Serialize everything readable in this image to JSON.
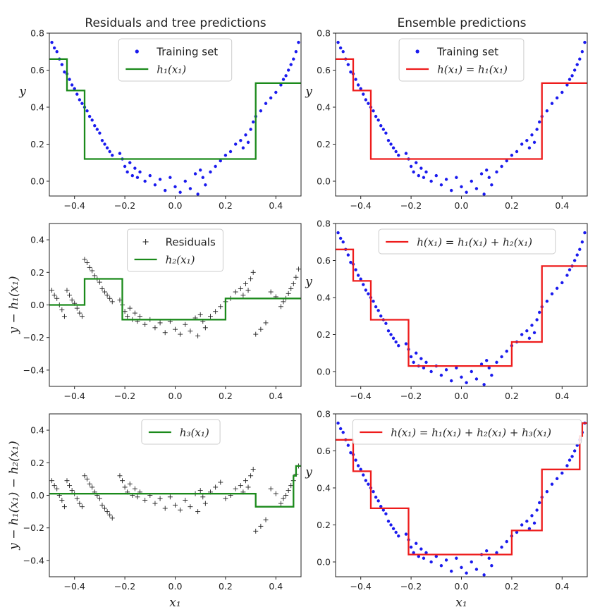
{
  "column_titles": [
    "Residuals and tree predictions",
    "Ensemble predictions"
  ],
  "chart_data": [
    {
      "type": "scatter",
      "panel": "top-left",
      "xlim": [
        -0.5,
        0.5
      ],
      "ylim": [
        -0.08,
        0.8
      ],
      "xticks": [
        -0.4,
        -0.2,
        0.0,
        0.2,
        0.4
      ],
      "xtick_labels": [
        "−0.4",
        "−0.2",
        "0.0",
        "0.2",
        "0.4"
      ],
      "yticks": [
        0.0,
        0.2,
        0.4,
        0.6,
        0.8
      ],
      "ytick_labels": [
        "0.0",
        "0.2",
        "0.4",
        "0.6",
        "0.8"
      ],
      "ylabel": "y",
      "xlabel": "",
      "points_series": "training",
      "step": {
        "name": "h₁(x₁)",
        "color": "#1b8a1b",
        "breaks": [
          -0.43,
          -0.36,
          0.32
        ],
        "levels": [
          0.66,
          0.49,
          0.12,
          0.53
        ]
      },
      "legend": {
        "position": "top-center",
        "entries": [
          {
            "kind": "dot",
            "label": "Training set"
          },
          {
            "kind": "line",
            "label": "h₁(x₁)"
          }
        ]
      }
    },
    {
      "type": "scatter",
      "panel": "top-right",
      "xlim": [
        -0.5,
        0.5
      ],
      "ylim": [
        -0.08,
        0.8
      ],
      "xticks": [
        -0.4,
        -0.2,
        0.0,
        0.2,
        0.4
      ],
      "xtick_labels": [
        "−0.4",
        "−0.2",
        "0.0",
        "0.2",
        "0.4"
      ],
      "yticks": [
        0.0,
        0.2,
        0.4,
        0.6,
        0.8
      ],
      "ytick_labels": [
        "0.0",
        "0.2",
        "0.4",
        "0.6",
        "0.8"
      ],
      "ylabel": "y",
      "xlabel": "",
      "points_series": "training",
      "step": {
        "name": "h(x₁) = h₁(x₁)",
        "color": "#ee1c1c",
        "breaks": [
          -0.43,
          -0.36,
          0.32
        ],
        "levels": [
          0.66,
          0.49,
          0.12,
          0.53
        ]
      },
      "legend": {
        "position": "top-center",
        "entries": [
          {
            "kind": "dot",
            "label": "Training set"
          },
          {
            "kind": "line",
            "label": "h(x₁) = h₁(x₁)"
          }
        ]
      }
    },
    {
      "type": "scatter",
      "panel": "middle-left",
      "xlim": [
        -0.5,
        0.5
      ],
      "ylim": [
        -0.5,
        0.5
      ],
      "xticks": [
        -0.4,
        -0.2,
        0.0,
        0.2,
        0.4
      ],
      "xtick_labels": [
        "−0.4",
        "−0.2",
        "0.0",
        "0.2",
        "0.4"
      ],
      "yticks": [
        -0.4,
        -0.2,
        0.0,
        0.2,
        0.4
      ],
      "ytick_labels": [
        "−0.4",
        "−0.2",
        "0.0",
        "0.2",
        "0.4"
      ],
      "ylabel": "y − h₁(x₁)",
      "xlabel": "",
      "points_series": "residuals1",
      "step": {
        "name": "h₂(x₁)",
        "color": "#1b8a1b",
        "breaks": [
          -0.36,
          -0.21,
          0.2
        ],
        "levels": [
          0.0,
          0.16,
          -0.09,
          0.04
        ]
      },
      "legend": {
        "position": "top-center",
        "entries": [
          {
            "kind": "plus",
            "label": "Residuals"
          },
          {
            "kind": "line",
            "label": "h₂(x₁)"
          }
        ]
      }
    },
    {
      "type": "scatter",
      "panel": "middle-right",
      "xlim": [
        -0.5,
        0.5
      ],
      "ylim": [
        -0.08,
        0.8
      ],
      "xticks": [
        -0.4,
        -0.2,
        0.0,
        0.2,
        0.4
      ],
      "xtick_labels": [
        "−0.4",
        "−0.2",
        "0.0",
        "0.2",
        "0.4"
      ],
      "yticks": [
        0.0,
        0.2,
        0.4,
        0.6,
        0.8
      ],
      "ytick_labels": [
        "0.0",
        "0.2",
        "0.4",
        "0.6",
        "0.8"
      ],
      "ylabel": "y",
      "xlabel": "",
      "points_series": "training",
      "step": {
        "name": "h(x₁) = h₁(x₁) + h₂(x₁)",
        "color": "#ee1c1c",
        "breaks": [
          -0.43,
          -0.36,
          -0.21,
          0.2,
          0.32
        ],
        "levels": [
          0.66,
          0.49,
          0.28,
          0.03,
          0.16,
          0.57
        ]
      },
      "legend": {
        "position": "top-center",
        "entries": [
          {
            "kind": "line",
            "label": "h(x₁) = h₁(x₁) + h₂(x₁)"
          }
        ]
      }
    },
    {
      "type": "scatter",
      "panel": "bottom-left",
      "xlim": [
        -0.5,
        0.5
      ],
      "ylim": [
        -0.5,
        0.5
      ],
      "xticks": [
        -0.4,
        -0.2,
        0.0,
        0.2,
        0.4
      ],
      "xtick_labels": [
        "−0.4",
        "−0.2",
        "0.0",
        "0.2",
        "0.4"
      ],
      "yticks": [
        -0.4,
        -0.2,
        0.0,
        0.2,
        0.4
      ],
      "ytick_labels": [
        "−0.4",
        "−0.2",
        "0.0",
        "0.2",
        "0.4"
      ],
      "ylabel": "y − h₁(x₁) − h₂(x₁)",
      "xlabel": "x₁",
      "points_series": "residuals2",
      "step": {
        "name": "h₃(x₁)",
        "color": "#1b8a1b",
        "breaks": [
          0.32,
          0.47,
          0.48
        ],
        "levels": [
          0.01,
          -0.07,
          0.12,
          0.18
        ]
      },
      "legend": {
        "position": "top-center",
        "entries": [
          {
            "kind": "line",
            "label": "h₃(x₁)"
          }
        ]
      }
    },
    {
      "type": "scatter",
      "panel": "bottom-right",
      "xlim": [
        -0.5,
        0.5
      ],
      "ylim": [
        -0.08,
        0.8
      ],
      "xticks": [
        -0.4,
        -0.2,
        0.0,
        0.2,
        0.4
      ],
      "xtick_labels": [
        "−0.4",
        "−0.2",
        "0.0",
        "0.2",
        "0.4"
      ],
      "yticks": [
        0.0,
        0.2,
        0.4,
        0.6,
        0.8
      ],
      "ytick_labels": [
        "0.0",
        "0.2",
        "0.4",
        "0.6",
        "0.8"
      ],
      "ylabel": "y",
      "xlabel": "x₁",
      "points_series": "training",
      "step": {
        "name": "h(x₁) = h₁(x₁) + h₂(x₁) + h₃(x₁)",
        "color": "#ee1c1c",
        "breaks": [
          -0.43,
          -0.36,
          -0.21,
          0.2,
          0.32,
          0.47,
          0.48
        ],
        "levels": [
          0.66,
          0.49,
          0.29,
          0.04,
          0.17,
          0.5,
          0.68,
          0.75
        ]
      },
      "legend": {
        "position": "top-center",
        "entries": [
          {
            "kind": "line",
            "label": "h(x₁) = h₁(x₁) + h₂(x₁) + h₃(x₁)"
          }
        ]
      }
    }
  ],
  "series": {
    "training": {
      "name": "Training set",
      "color": "#1a1aee",
      "x": [
        -0.49,
        -0.48,
        -0.47,
        -0.46,
        -0.45,
        -0.44,
        -0.43,
        -0.42,
        -0.41,
        -0.4,
        -0.39,
        -0.38,
        -0.37,
        -0.36,
        -0.35,
        -0.34,
        -0.33,
        -0.32,
        -0.31,
        -0.3,
        -0.29,
        -0.28,
        -0.27,
        -0.26,
        -0.25,
        -0.22,
        -0.21,
        -0.2,
        -0.19,
        -0.18,
        -0.17,
        -0.16,
        -0.15,
        -0.14,
        -0.12,
        -0.1,
        -0.08,
        -0.06,
        -0.04,
        -0.02,
        0.0,
        0.02,
        0.04,
        0.06,
        0.08,
        0.09,
        0.1,
        0.11,
        0.12,
        0.14,
        0.16,
        0.18,
        0.2,
        0.22,
        0.24,
        0.26,
        0.27,
        0.28,
        0.29,
        0.3,
        0.31,
        0.32,
        0.34,
        0.36,
        0.38,
        0.4,
        0.42,
        0.43,
        0.44,
        0.45,
        0.46,
        0.47,
        0.48,
        0.49
      ],
      "y": [
        0.75,
        0.72,
        0.7,
        0.66,
        0.63,
        0.59,
        0.58,
        0.55,
        0.52,
        0.5,
        0.47,
        0.44,
        0.42,
        0.4,
        0.38,
        0.35,
        0.33,
        0.3,
        0.28,
        0.26,
        0.22,
        0.2,
        0.18,
        0.16,
        0.14,
        0.15,
        0.12,
        0.08,
        0.05,
        0.1,
        0.03,
        0.07,
        0.02,
        0.05,
        0.0,
        0.03,
        -0.02,
        0.01,
        -0.05,
        0.02,
        -0.03,
        -0.06,
        0.0,
        -0.04,
        0.04,
        -0.07,
        0.06,
        0.02,
        -0.02,
        0.05,
        0.08,
        0.11,
        0.14,
        0.16,
        0.2,
        0.22,
        0.18,
        0.25,
        0.21,
        0.28,
        0.32,
        0.35,
        0.38,
        0.42,
        0.45,
        0.48,
        0.52,
        0.55,
        0.57,
        0.6,
        0.63,
        0.66,
        0.7,
        0.75
      ]
    },
    "residuals1": {
      "name": "Residuals",
      "color": "#222222",
      "x": [
        -0.49,
        -0.48,
        -0.47,
        -0.46,
        -0.45,
        -0.44,
        -0.43,
        -0.42,
        -0.41,
        -0.4,
        -0.39,
        -0.38,
        -0.37,
        -0.36,
        -0.35,
        -0.34,
        -0.33,
        -0.32,
        -0.31,
        -0.3,
        -0.29,
        -0.28,
        -0.27,
        -0.26,
        -0.25,
        -0.22,
        -0.21,
        -0.2,
        -0.19,
        -0.18,
        -0.17,
        -0.16,
        -0.15,
        -0.14,
        -0.12,
        -0.1,
        -0.08,
        -0.06,
        -0.04,
        -0.02,
        0.0,
        0.02,
        0.04,
        0.06,
        0.08,
        0.09,
        0.1,
        0.11,
        0.12,
        0.14,
        0.16,
        0.18,
        0.2,
        0.22,
        0.24,
        0.26,
        0.27,
        0.28,
        0.29,
        0.3,
        0.31,
        0.32,
        0.34,
        0.36,
        0.38,
        0.4,
        0.42,
        0.43,
        0.44,
        0.45,
        0.46,
        0.47,
        0.48,
        0.49
      ],
      "y": [
        0.09,
        0.06,
        0.04,
        0.0,
        -0.03,
        -0.07,
        0.09,
        0.06,
        0.03,
        0.01,
        -0.02,
        -0.05,
        -0.07,
        0.28,
        0.26,
        0.23,
        0.21,
        0.18,
        0.16,
        0.14,
        0.1,
        0.08,
        0.06,
        0.04,
        0.02,
        0.03,
        0.0,
        -0.04,
        -0.07,
        -0.02,
        -0.09,
        -0.05,
        -0.1,
        -0.07,
        -0.12,
        -0.09,
        -0.14,
        -0.11,
        -0.17,
        -0.1,
        -0.15,
        -0.18,
        -0.12,
        -0.16,
        -0.08,
        -0.19,
        -0.06,
        -0.1,
        -0.14,
        -0.07,
        -0.04,
        -0.01,
        0.02,
        0.04,
        0.08,
        0.1,
        0.06,
        0.13,
        0.09,
        0.16,
        0.2,
        -0.18,
        -0.15,
        -0.11,
        0.08,
        0.05,
        -0.01,
        0.02,
        0.04,
        0.07,
        0.1,
        0.13,
        0.17,
        0.22
      ]
    },
    "residuals2": {
      "name": "Residuals",
      "color": "#222222",
      "x": [
        -0.49,
        -0.48,
        -0.47,
        -0.46,
        -0.45,
        -0.44,
        -0.43,
        -0.42,
        -0.41,
        -0.4,
        -0.39,
        -0.38,
        -0.37,
        -0.36,
        -0.35,
        -0.34,
        -0.33,
        -0.32,
        -0.31,
        -0.3,
        -0.29,
        -0.28,
        -0.27,
        -0.26,
        -0.25,
        -0.22,
        -0.21,
        -0.2,
        -0.19,
        -0.18,
        -0.17,
        -0.16,
        -0.15,
        -0.14,
        -0.12,
        -0.1,
        -0.08,
        -0.06,
        -0.04,
        -0.02,
        0.0,
        0.02,
        0.04,
        0.06,
        0.08,
        0.09,
        0.1,
        0.11,
        0.12,
        0.14,
        0.16,
        0.18,
        0.2,
        0.22,
        0.24,
        0.26,
        0.27,
        0.28,
        0.29,
        0.3,
        0.31,
        0.32,
        0.34,
        0.36,
        0.38,
        0.4,
        0.42,
        0.43,
        0.44,
        0.45,
        0.46,
        0.47,
        0.48,
        0.49
      ],
      "y": [
        0.09,
        0.06,
        0.04,
        0.0,
        -0.03,
        -0.07,
        0.09,
        0.06,
        0.03,
        0.01,
        -0.02,
        -0.05,
        -0.07,
        0.12,
        0.1,
        0.07,
        0.05,
        0.02,
        0.0,
        -0.02,
        -0.06,
        -0.08,
        -0.1,
        -0.12,
        -0.14,
        0.12,
        0.09,
        0.05,
        0.02,
        0.07,
        0.0,
        0.04,
        -0.01,
        0.02,
        -0.03,
        0.0,
        -0.05,
        -0.02,
        -0.08,
        -0.01,
        -0.06,
        -0.09,
        -0.03,
        -0.07,
        0.01,
        -0.1,
        0.03,
        -0.01,
        -0.05,
        0.02,
        0.05,
        0.08,
        -0.02,
        0.0,
        0.04,
        0.06,
        0.02,
        0.09,
        0.05,
        0.12,
        0.16,
        -0.22,
        -0.19,
        -0.15,
        0.04,
        0.01,
        -0.05,
        -0.02,
        0.0,
        0.03,
        0.06,
        0.09,
        0.13,
        0.18
      ]
    }
  }
}
